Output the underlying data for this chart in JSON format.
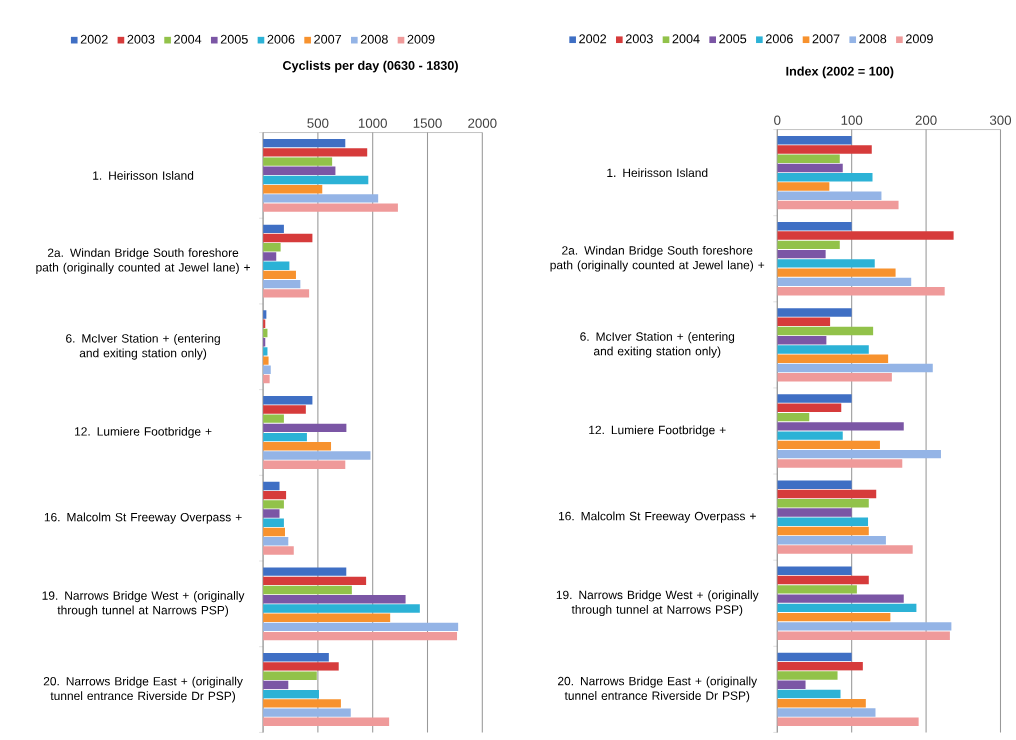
{
  "chart_data": [
    {
      "type": "bar",
      "orientation": "horizontal",
      "xlabel": "**Cyclists per day (0630 - 1830)**",
      "categories": [
        "1. Heirisson Island",
        "2a. Windan Bridge South foreshore path (originally counted at Jewel lane) +",
        "6. McIver Station +  (entering and exiting station only)",
        "12. Lumiere Footbridge +",
        "16. Malcolm St Freeway Overpass +",
        "19. Narrows Bridge West + (originally through tunnel at Narrows PSP)",
        "20. Narrows Bridge East + (originally tunnel entrance Riverside Dr PSP)"
      ],
      "series": [
        {
          "name": "2002",
          "color": "#3f6fc4",
          "values": [
            750,
            190,
            30,
            450,
            150,
            760,
            600
          ]
        },
        {
          "name": "2003",
          "color": "#d63b3b",
          "values": [
            950,
            450,
            20,
            390,
            210,
            940,
            690
          ]
        },
        {
          "name": "2004",
          "color": "#92c24a",
          "values": [
            630,
            160,
            40,
            190,
            190,
            810,
            490
          ]
        },
        {
          "name": "2005",
          "color": "#7b56a5",
          "values": [
            660,
            120,
            20,
            760,
            150,
            1300,
            230
          ]
        },
        {
          "name": "2006",
          "color": "#2cb2d6",
          "values": [
            960,
            240,
            40,
            400,
            190,
            1430,
            510
          ]
        },
        {
          "name": "2007",
          "color": "#f7922e",
          "values": [
            540,
            300,
            50,
            620,
            200,
            1160,
            710
          ]
        },
        {
          "name": "2008",
          "color": "#94b4e6",
          "values": [
            1050,
            340,
            70,
            980,
            230,
            1780,
            800
          ]
        },
        {
          "name": "2009",
          "color": "#ef9a9a",
          "values": [
            1230,
            420,
            60,
            750,
            280,
            1770,
            1150
          ]
        }
      ],
      "xlim": [
        0,
        2000
      ],
      "xticks": [
        {
          "value": 0,
          "label": null
        },
        500,
        1000,
        1500,
        2000
      ],
      "grid": "x",
      "legend": "top"
    },
    {
      "type": "bar",
      "orientation": "horizontal",
      "xlabel": "**Index (2002 = 100)**",
      "categories": [
        "1. Heirisson Island",
        "2a. Windan Bridge South foreshore path (originally counted at Jewel lane) +",
        "6. McIver Station +  (entering and exiting station only)",
        "12. Lumiere Footbridge +",
        "16. Malcolm St Freeway Overpass +",
        "19. Narrows Bridge West + (originally through tunnel at Narrows PSP)",
        "20. Narrows Bridge East + (originally tunnel entrance Riverside Dr PSP)"
      ],
      "series": [
        {
          "name": "2002",
          "color": "#3f6fc4",
          "values": [
            100,
            100,
            100,
            100,
            100,
            100,
            100
          ]
        },
        {
          "name": "2003",
          "color": "#d63b3b",
          "values": [
            127,
            237,
            71,
            86,
            133,
            123,
            115
          ]
        },
        {
          "name": "2004",
          "color": "#92c24a",
          "values": [
            84,
            84,
            129,
            43,
            123,
            107,
            81
          ]
        },
        {
          "name": "2005",
          "color": "#7b56a5",
          "values": [
            88,
            65,
            66,
            170,
            100,
            170,
            38
          ]
        },
        {
          "name": "2006",
          "color": "#2cb2d6",
          "values": [
            128,
            131,
            123,
            88,
            122,
            187,
            85
          ]
        },
        {
          "name": "2007",
          "color": "#f7922e",
          "values": [
            70,
            159,
            149,
            138,
            123,
            152,
            119
          ]
        },
        {
          "name": "2008",
          "color": "#94b4e6",
          "values": [
            140,
            180,
            209,
            220,
            146,
            234,
            132
          ]
        },
        {
          "name": "2009",
          "color": "#ef9a9a",
          "values": [
            163,
            225,
            154,
            168,
            182,
            232,
            190
          ]
        }
      ],
      "xlim": [
        0,
        300
      ],
      "xticks": [
        0,
        100,
        200,
        300
      ],
      "grid": "x",
      "legend": "top"
    }
  ]
}
